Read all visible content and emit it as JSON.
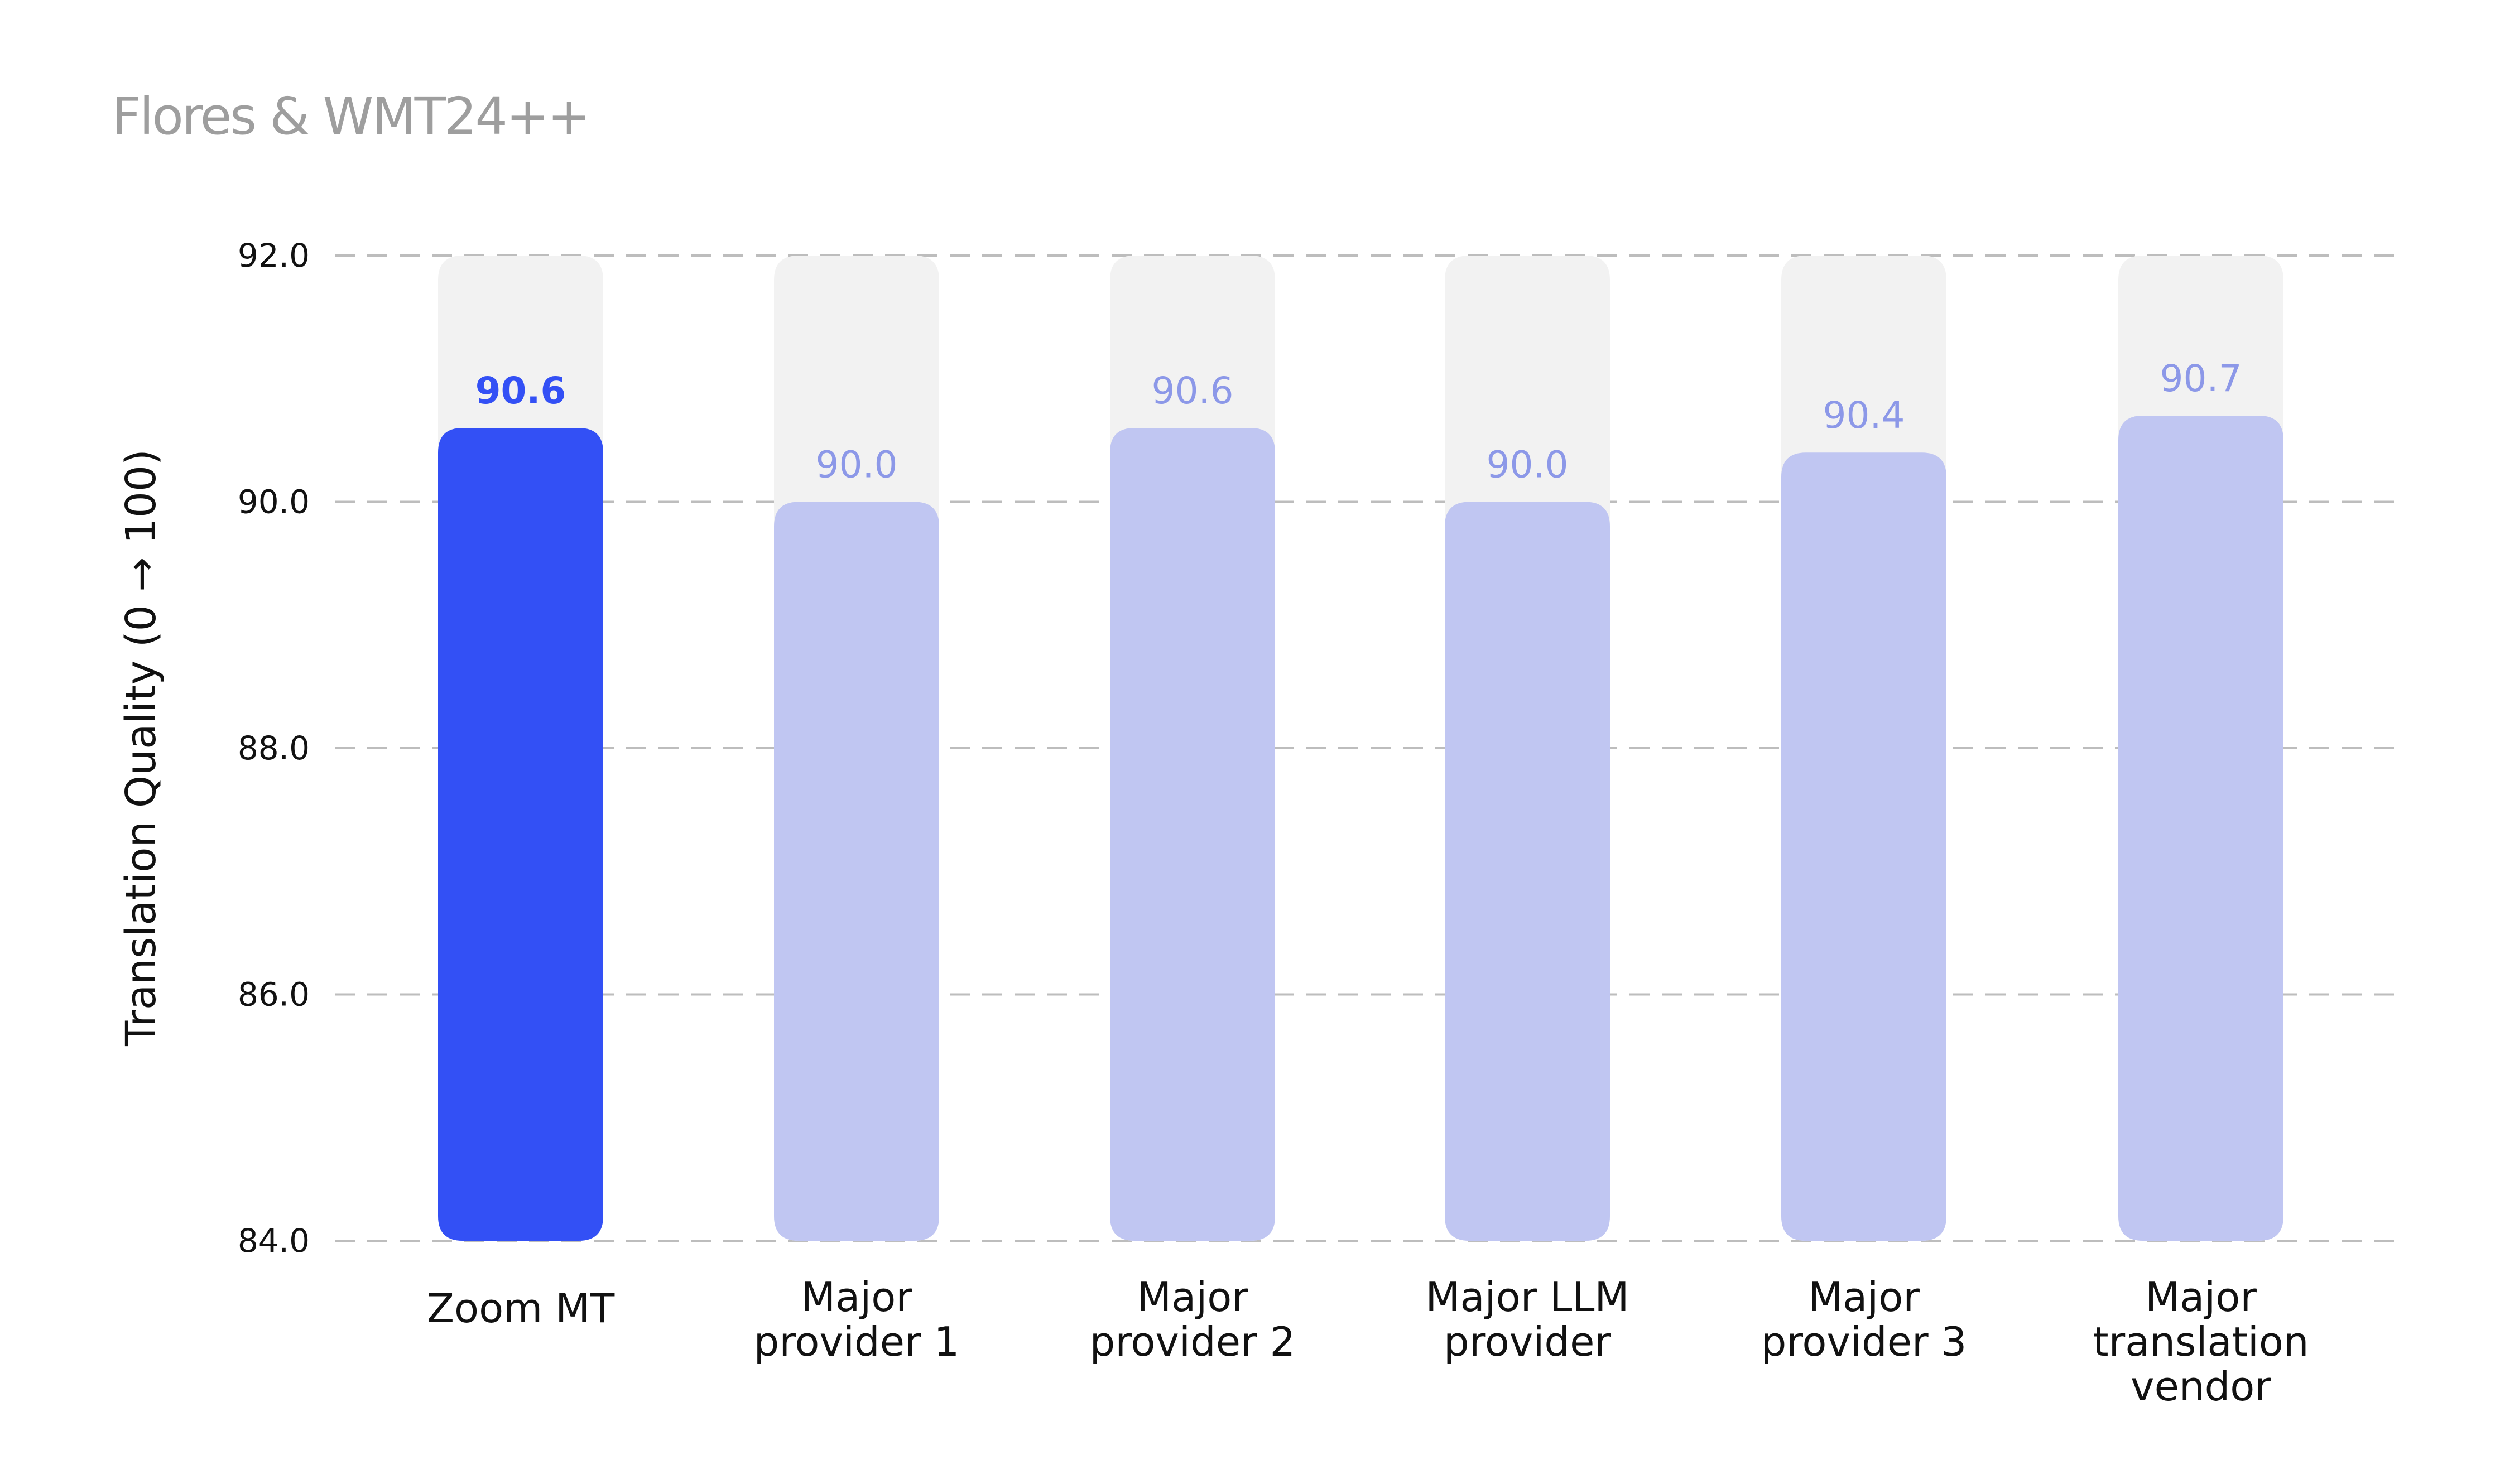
{
  "chart_data": {
    "type": "bar",
    "title": "Flores & WMT24++",
    "ylabel": "Translation Quality (0 → 100)",
    "xlabel": "",
    "ylim": [
      84.0,
      92.0
    ],
    "yticks": [
      92.0,
      90.0,
      88.0,
      86.0,
      84.0
    ],
    "ytick_labels": [
      "92.0",
      "90.0",
      "88.0",
      "86.0",
      "84.0"
    ],
    "categories": [
      [
        "Zoom MT"
      ],
      [
        "Major",
        "provider 1"
      ],
      [
        "Major",
        "provider 2"
      ],
      [
        "Major LLM",
        "provider"
      ],
      [
        "Major",
        "provider 3"
      ],
      [
        "Major",
        "translation",
        "vendor"
      ]
    ],
    "values": [
      90.6,
      90.0,
      90.6,
      90.0,
      90.4,
      90.7
    ],
    "value_labels": [
      "90.6",
      "90.0",
      "90.6",
      "90.0",
      "90.4",
      "90.7"
    ],
    "highlight_index": 0,
    "grid": true,
    "legend": "none",
    "colors": {
      "highlight_bar": "#3350f5",
      "bar": "#c0c6f2",
      "track": "#f2f2f2",
      "highlight_label": "#3350f5",
      "label": "#8c98e8",
      "grid": "#bdbdbd",
      "title": "#9e9e9e"
    }
  }
}
